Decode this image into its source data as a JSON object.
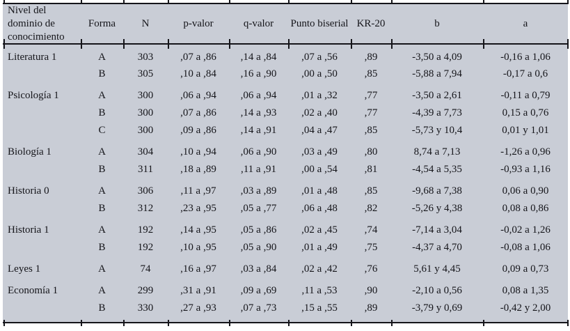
{
  "colors": {
    "table_background": "#c9cdd6",
    "rule": "#15151a",
    "text": "#15151a"
  },
  "table": {
    "columns": [
      "Nivel del dominio de conocimiento",
      "Forma",
      "N",
      "p-valor",
      "q-valor",
      "Punto biserial",
      "KR-20",
      "b",
      "a"
    ],
    "groups": [
      {
        "domain": "Literatura 1",
        "rows": [
          [
            "A",
            "303",
            ",07 a ,86",
            ",14 a ,84",
            ",07 a ,56",
            ",89",
            "-3,50 a 4,09",
            "-0,16 a 1,06"
          ],
          [
            "B",
            "305",
            ",10 a ,84",
            ",16 a ,90",
            ",00 a ,50",
            ",85",
            "-5,88 a 7,94",
            "-0,17 a 0,6"
          ]
        ]
      },
      {
        "domain": "Psicología 1",
        "rows": [
          [
            "A",
            "300",
            ",06 a ,94",
            ",06 a ,94",
            ",01 a ,32",
            ",77",
            "-3,50 a 2,61",
            "-0,11 a 0,79"
          ],
          [
            "B",
            "300",
            ",07 a ,86",
            ",14 a ,93",
            ",02 a ,40",
            ",77",
            "-4,39 a 7,73",
            "0,15 a 0,76"
          ],
          [
            "C",
            "300",
            ",09 a ,86",
            ",14 a ,91",
            ",04 a ,47",
            ",85",
            "-5,73 y 10,4",
            "0,01 y 1,01"
          ]
        ]
      },
      {
        "domain": "Biología 1",
        "rows": [
          [
            "A",
            "304",
            ",10 a ,94",
            ",06 a ,90",
            ",03 a ,49",
            ",80",
            "8,74 a 7,13",
            "-1,26 a 0,96"
          ],
          [
            "B",
            "311",
            ",18 a ,89",
            ",11 a ,91",
            ",00 a ,54",
            ",81",
            "-4,54 a 5,35",
            "-0,93 a 1,16"
          ]
        ]
      },
      {
        "domain": "Historia 0",
        "rows": [
          [
            "A",
            "306",
            ",11 a ,97",
            ",03 a ,89",
            ",01 a ,48",
            ",85",
            "-9,68 a 7,38",
            "0,06 a 0,90"
          ],
          [
            "B",
            "312",
            ",23 a ,95",
            ",05 a ,77",
            ",06 a ,48",
            ",82",
            "-5,26 y 4,38",
            "0,08 a 0,86"
          ]
        ]
      },
      {
        "domain": "Historia 1",
        "rows": [
          [
            "A",
            "192",
            ",14 a ,95",
            ",05 a ,86",
            ",02 a ,45",
            ",74",
            "-7,14 a 3,04",
            "-0,02 a 1,26"
          ],
          [
            "B",
            "192",
            ",10 a ,95",
            ",05 a ,90",
            ",01 a ,49",
            ",75",
            "-4,37 a 4,70",
            "-0,08 a 1,06"
          ]
        ]
      },
      {
        "domain": "Leyes 1",
        "rows": [
          [
            "A",
            "74",
            ",16 a ,97",
            ",03 a ,84",
            ",02 a ,42",
            ",76",
            "5,61 y 4,45",
            "0,09 a 0,73"
          ]
        ]
      },
      {
        "domain": "Economía 1",
        "rows": [
          [
            "A",
            "299",
            ",31 a ,91",
            ",09 a ,69",
            ",11 a ,53",
            ",90",
            "-2,10 a 0,56",
            "0,08 a 1,35"
          ],
          [
            "B",
            "330",
            ",27 a ,93",
            ",07 a ,73",
            ",15 a ,55",
            ",89",
            "-3,79 y 0,69",
            "-0,42 y 2,00"
          ]
        ]
      }
    ]
  },
  "chart_data": {
    "type": "table",
    "title": "",
    "columns": [
      "Nivel del dominio de conocimiento",
      "Forma",
      "N",
      "p-valor",
      "q-valor",
      "Punto biserial",
      "KR-20",
      "b",
      "a"
    ],
    "rows": [
      [
        "Literatura 1",
        "A",
        "303",
        ",07 a ,86",
        ",14 a ,84",
        ",07 a ,56",
        ",89",
        "-3,50 a 4,09",
        "-0,16 a 1,06"
      ],
      [
        "",
        "B",
        "305",
        ",10 a ,84",
        ",16 a ,90",
        ",00 a ,50",
        ",85",
        "-5,88 a 7,94",
        "-0,17 a 0,6"
      ],
      [
        "Psicología 1",
        "A",
        "300",
        ",06 a ,94",
        ",06 a ,94",
        ",01 a ,32",
        ",77",
        "-3,50 a 2,61",
        "-0,11 a 0,79"
      ],
      [
        "",
        "B",
        "300",
        ",07 a ,86",
        ",14 a ,93",
        ",02 a ,40",
        ",77",
        "-4,39 a 7,73",
        "0,15 a 0,76"
      ],
      [
        "",
        "C",
        "300",
        ",09 a ,86",
        ",14 a ,91",
        ",04 a ,47",
        ",85",
        "-5,73 y 10,4",
        "0,01 y 1,01"
      ],
      [
        "Biología 1",
        "A",
        "304",
        ",10 a ,94",
        ",06 a ,90",
        ",03 a ,49",
        ",80",
        "8,74 a 7,13",
        "-1,26 a 0,96"
      ],
      [
        "",
        "B",
        "311",
        ",18 a ,89",
        ",11 a ,91",
        ",00 a ,54",
        ",81",
        "-4,54 a 5,35",
        "-0,93 a 1,16"
      ],
      [
        "Historia 0",
        "A",
        "306",
        ",11 a ,97",
        ",03 a ,89",
        ",01 a ,48",
        ",85",
        "-9,68 a 7,38",
        "0,06 a 0,90"
      ],
      [
        "",
        "B",
        "312",
        ",23 a ,95",
        ",05 a ,77",
        ",06 a ,48",
        ",82",
        "-5,26 y 4,38",
        "0,08 a 0,86"
      ],
      [
        "Historia 1",
        "A",
        "192",
        ",14 a ,95",
        ",05 a ,86",
        ",02 a ,45",
        ",74",
        "-7,14 a 3,04",
        "-0,02 a 1,26"
      ],
      [
        "",
        "B",
        "192",
        ",10 a ,95",
        ",05 a ,90",
        ",01 a ,49",
        ",75",
        "-4,37 a 4,70",
        "-0,08 a 1,06"
      ],
      [
        "Leyes 1",
        "A",
        "74",
        ",16 a ,97",
        ",03 a ,84",
        ",02 a ,42",
        ",76",
        "5,61 y 4,45",
        "0,09 a 0,73"
      ],
      [
        "Economía 1",
        "A",
        "299",
        ",31 a ,91",
        ",09 a ,69",
        ",11 a ,53",
        ",90",
        "-2,10 a 0,56",
        "0,08 a 1,35"
      ],
      [
        "",
        "B",
        "330",
        ",27 a ,93",
        ",07 a ,73",
        ",15 a ,55",
        ",89",
        "-3,79 y 0,69",
        "-0,42 y 2,00"
      ]
    ]
  }
}
